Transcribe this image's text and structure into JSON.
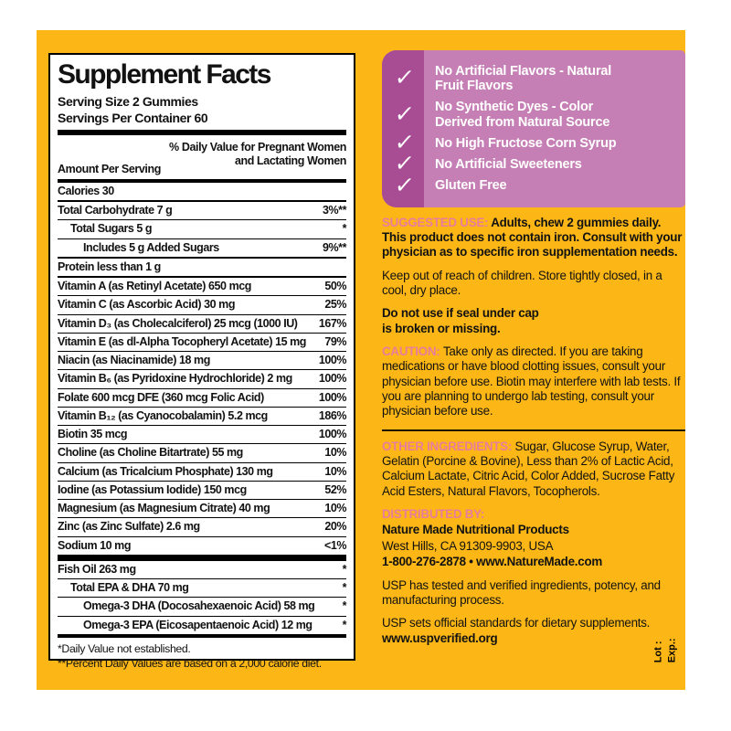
{
  "colors": {
    "panel_yellow": "#fcb615",
    "claims_dark": "#a84c93",
    "claims_light": "#c67fb4",
    "heading_pink": "#e87d9d",
    "ink": "#121212"
  },
  "icons": {
    "check": "✓"
  },
  "supplement_facts": {
    "title": "Supplement Facts",
    "serving_size": "Serving Size 2 Gummies",
    "servings_per_container": "Servings Per Container 60",
    "column_left": "Amount Per Serving",
    "column_right": "% Daily Value for Pregnant Women\nand Lactating Women",
    "rows": [
      {
        "name": "Calories 30",
        "value": "",
        "indent": 0,
        "bar": "2"
      },
      {
        "name": "Total Carbohydrate 7 g",
        "value": "3%**",
        "indent": 0,
        "bar": "1"
      },
      {
        "name": "Total Sugars 5 g",
        "value": "*",
        "indent": 1,
        "bar": "1"
      },
      {
        "name": "Includes 5 g Added Sugars",
        "value": "9%**",
        "indent": 2,
        "bar": "2"
      },
      {
        "name": "Protein less than 1 g",
        "value": "",
        "indent": 0,
        "bar": "2"
      },
      {
        "name": "Vitamin A (as Retinyl Acetate) 650 mcg",
        "value": "50%",
        "indent": 0,
        "bar": "1"
      },
      {
        "name": "Vitamin C (as Ascorbic Acid) 30 mg",
        "value": "25%",
        "indent": 0,
        "bar": "1"
      },
      {
        "name": "Vitamin D₃ (as Cholecalciferol) 25 mcg (1000 IU)",
        "value": "167%",
        "indent": 0,
        "bar": "1"
      },
      {
        "name": "Vitamin E (as dl-Alpha Tocopheryl Acetate) 15 mg",
        "value": "79%",
        "indent": 0,
        "bar": "1"
      },
      {
        "name": "Niacin (as Niacinamide) 18 mg",
        "value": "100%",
        "indent": 0,
        "bar": "1"
      },
      {
        "name": "Vitamin B₆ (as Pyridoxine Hydrochloride) 2 mg",
        "value": "100%",
        "indent": 0,
        "bar": "1"
      },
      {
        "name": "Folate 600 mcg DFE (360 mcg Folic Acid)",
        "value": "100%",
        "indent": 0,
        "bar": "1"
      },
      {
        "name": "Vitamin B₁₂ (as Cyanocobalamin) 5.2 mcg",
        "value": "186%",
        "indent": 0,
        "bar": "1"
      },
      {
        "name": "Biotin 35 mcg",
        "value": "100%",
        "indent": 0,
        "bar": "1"
      },
      {
        "name": "Choline (as Choline Bitartrate) 55 mg",
        "value": "10%",
        "indent": 0,
        "bar": "1"
      },
      {
        "name": "Calcium (as Tricalcium Phosphate) 130 mg",
        "value": "10%",
        "indent": 0,
        "bar": "1"
      },
      {
        "name": "Iodine (as Potassium Iodide) 150 mcg",
        "value": "52%",
        "indent": 0,
        "bar": "1"
      },
      {
        "name": "Magnesium (as Magnesium Citrate) 40 mg",
        "value": "10%",
        "indent": 0,
        "bar": "1"
      },
      {
        "name": "Zinc (as Zinc Sulfate) 2.6 mg",
        "value": "20%",
        "indent": 0,
        "bar": "1"
      },
      {
        "name": "Sodium 10 mg",
        "value": "<1%",
        "indent": 0,
        "bar": "6"
      },
      {
        "name": "Fish Oil 263 mg",
        "value": "*",
        "indent": 0,
        "bar": "1"
      },
      {
        "name": "Total EPA & DHA 70 mg",
        "value": "*",
        "indent": 1,
        "bar": "1"
      },
      {
        "name": "Omega-3 DHA (Docosahexaenoic Acid) 58 mg",
        "value": "*",
        "indent": 2,
        "bar": "1"
      },
      {
        "name": "Omega-3 EPA (Eicosapentaenoic Acid) 12 mg",
        "value": "*",
        "indent": 2,
        "bar": "4"
      }
    ],
    "footnotes": [
      "*Daily Value not established.",
      "**Percent Daily Values are based on a 2,000 calorie diet."
    ]
  },
  "claims": [
    "No Artificial Flavors - Natural\nFruit Flavors",
    "No Synthetic Dyes - Color\nDerived from Natural Source",
    "No High Fructose Corn Syrup",
    "No Artificial Sweeteners",
    "Gluten Free"
  ],
  "right_column": {
    "paragraphs": [
      {
        "segments": [
          {
            "style": "label",
            "text": "SUGGESTED USE: "
          },
          {
            "style": "bold",
            "text": "Adults, chew 2 gummies daily. This product does not contain iron. Consult with your physician as to specific iron supplementation needs."
          }
        ]
      },
      {
        "segments": [
          {
            "style": "regular",
            "text": "Keep out of reach of children. Store tightly closed, in a cool, dry place."
          }
        ]
      },
      {
        "segments": [
          {
            "style": "bold",
            "text": "Do not use if seal under cap\nis broken or missing."
          }
        ]
      },
      {
        "segments": [
          {
            "style": "label",
            "text": "CAUTION: "
          },
          {
            "style": "regular",
            "text": "Take only as directed. If you are taking medications or have blood clotting issues, consult your physician before use. Biotin may interfere with lab tests. If you are planning to undergo lab testing, consult your physician before use."
          }
        ]
      },
      {
        "divider": true,
        "segments": [
          {
            "style": "label",
            "text": "OTHER INGREDIENTS: "
          },
          {
            "style": "regular",
            "text": "Sugar, Glucose Syrup, Water, Gelatin (Porcine & Bovine), Less than 2% of Lactic Acid, Calcium Lactate, Citric Acid, Color Added, Sucrose Fatty Acid Esters, Natural Flavors, Tocopherols."
          }
        ]
      },
      {
        "segments": [
          {
            "style": "label",
            "text": "DISTRIBUTED BY:"
          }
        ]
      },
      {
        "tight": true,
        "segments": [
          {
            "style": "bold",
            "text": "Nature Made Nutritional Products"
          }
        ]
      },
      {
        "tight": true,
        "segments": [
          {
            "style": "regular",
            "text": "West Hills, CA 91309-9903, USA"
          }
        ]
      },
      {
        "tight": true,
        "segments": [
          {
            "style": "bold",
            "text": "1-800-276-2878 • www.NatureMade.com"
          }
        ]
      },
      {
        "segments": [
          {
            "style": "regular",
            "text": "USP has tested and verified ingredients, potency, and manufacturing process."
          }
        ]
      },
      {
        "segments": [
          {
            "style": "regular",
            "text": "USP sets official standards for dietary supplements. "
          },
          {
            "style": "bold",
            "text": "www.uspverified.org"
          }
        ]
      }
    ]
  },
  "lot_exp": {
    "lot": "Lot :",
    "exp": "Exp.:"
  }
}
